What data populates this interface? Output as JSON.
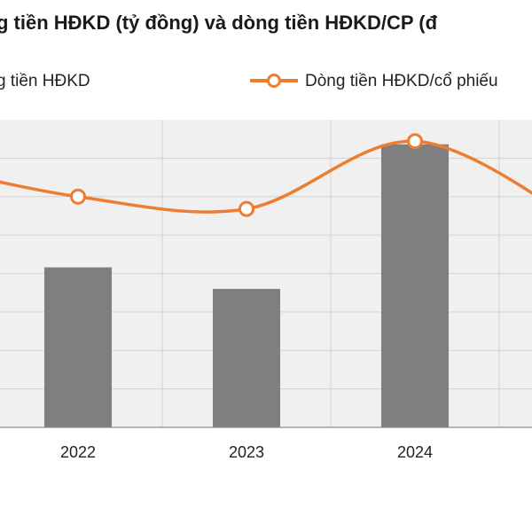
{
  "chart_data": {
    "type": "bar-line",
    "title": "g tiền HĐKD (tỷ đồng) và dòng tiền HĐKD/CP (đ",
    "categories": [
      "2022",
      "2023",
      "2024"
    ],
    "series": [
      {
        "name": "g tiền HĐKD",
        "type": "bar",
        "color": "#7f7f7f",
        "values": [
          5.2,
          4.5,
          9.2
        ]
      },
      {
        "name": "Dòng tiền HĐKD/cổ phiếu",
        "type": "line",
        "color": "#ed7d31",
        "values": [
          7.5,
          7.1,
          9.3
        ]
      }
    ],
    "xlabel": "",
    "ylabel": "",
    "ylim": [
      0,
      10
    ],
    "grid": true,
    "legend": "top"
  }
}
